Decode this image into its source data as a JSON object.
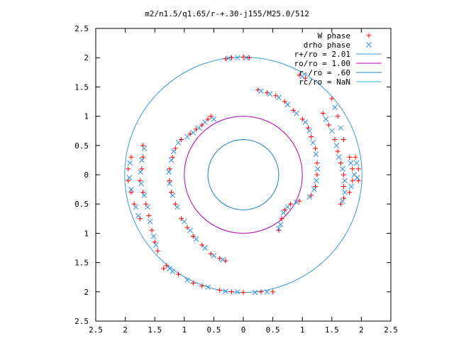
{
  "chart_data": {
    "type": "scatter",
    "title": "m2/n1.5/q1.65/r-+.30-j155/M25.0/512",
    "xlim": [
      -2.5,
      2.5
    ],
    "ylim": [
      -2.5,
      2.5
    ],
    "x_tick_labels": [
      "2.5",
      "2",
      "1.5",
      "1",
      "0.5",
      "0",
      "0.5",
      "1",
      "1.5",
      "2",
      "2.5"
    ],
    "y_tick_labels": [
      "2.5",
      "2",
      "1.5",
      "1",
      "0.5",
      "0",
      "0.5",
      "1",
      "1.5",
      "2",
      "2.5"
    ],
    "grid": false,
    "legend_position": "top-right",
    "legend": [
      {
        "label": "W phase",
        "marker": "plus",
        "color": "#ff0000"
      },
      {
        "label": "drho phase",
        "marker": "cross",
        "color": "#3090e0"
      },
      {
        "label": "r+/ro = 2.01",
        "marker": "line",
        "color": "#3a9ad8"
      },
      {
        "label": "ro/ro = 1.00",
        "marker": "line",
        "color": "#b000b0"
      },
      {
        "label": "r-/ro = .60",
        "marker": "line",
        "color": "#1a80c0"
      },
      {
        "label": "rc/ro = NaN",
        "marker": "line",
        "color": "#20c0e0"
      }
    ],
    "circles": [
      {
        "name": "r+/ro = 2.01",
        "r": 2.01,
        "color": "#3a9ad8"
      },
      {
        "name": "ro/ro = 1.00",
        "r": 1.0,
        "color": "#b000b0"
      },
      {
        "name": "r-/ro = .60",
        "r": 0.6,
        "color": "#1a80c0"
      }
    ],
    "series": [
      {
        "name": "W phase",
        "marker": "plus",
        "color": "#ff0000",
        "points": [
          [
            -0.55,
            1.0
          ],
          [
            -0.6,
            0.95
          ],
          [
            -0.7,
            0.85
          ],
          [
            -0.8,
            0.78
          ],
          [
            -0.9,
            0.7
          ],
          [
            -1.05,
            0.6
          ],
          [
            -1.15,
            0.45
          ],
          [
            -1.2,
            0.3
          ],
          [
            -1.25,
            0.1
          ],
          [
            -1.25,
            -0.1
          ],
          [
            -1.22,
            -0.3
          ],
          [
            -1.15,
            -0.5
          ],
          [
            -1.05,
            -0.75
          ],
          [
            -0.95,
            -0.9
          ],
          [
            -0.85,
            -1.05
          ],
          [
            -0.7,
            -1.2
          ],
          [
            -0.55,
            -1.35
          ],
          [
            -0.4,
            -1.43
          ],
          [
            -0.3,
            -1.47
          ],
          [
            -1.7,
            0.5
          ],
          [
            -1.7,
            0.3
          ],
          [
            -1.72,
            0.1
          ],
          [
            -1.75,
            -0.1
          ],
          [
            -1.7,
            -0.3
          ],
          [
            -1.65,
            -0.5
          ],
          [
            -1.6,
            -0.7
          ],
          [
            -1.55,
            -0.95
          ],
          [
            -1.5,
            -1.15
          ],
          [
            -1.45,
            -1.3
          ],
          [
            -1.35,
            -1.6
          ],
          [
            -1.1,
            -1.7
          ],
          [
            -0.85,
            -1.85
          ],
          [
            -1.95,
            -0.1
          ],
          [
            -1.95,
            0.1
          ],
          [
            -1.9,
            0.3
          ],
          [
            -1.9,
            -0.3
          ],
          [
            -1.85,
            -0.5
          ],
          [
            -1.75,
            -0.75
          ],
          [
            0.25,
            1.45
          ],
          [
            0.4,
            1.4
          ],
          [
            0.55,
            1.35
          ],
          [
            0.7,
            1.25
          ],
          [
            0.85,
            1.1
          ],
          [
            1.0,
            0.95
          ],
          [
            1.1,
            0.8
          ],
          [
            1.15,
            0.65
          ],
          [
            1.22,
            0.45
          ],
          [
            1.25,
            0.2
          ],
          [
            1.25,
            0.0
          ],
          [
            1.22,
            -0.2
          ],
          [
            1.15,
            -0.35
          ],
          [
            0.95,
            -0.45
          ],
          [
            0.8,
            -0.5
          ],
          [
            0.7,
            -0.6
          ],
          [
            0.65,
            -0.75
          ],
          [
            0.6,
            -0.95
          ],
          [
            1.35,
            1.05
          ],
          [
            1.45,
            0.85
          ],
          [
            1.55,
            0.6
          ],
          [
            1.6,
            0.4
          ],
          [
            1.65,
            0.2
          ],
          [
            1.7,
            0.0
          ],
          [
            1.7,
            -0.2
          ],
          [
            1.7,
            -0.4
          ],
          [
            1.65,
            -0.5
          ],
          [
            1.8,
            0.3
          ],
          [
            1.85,
            0.1
          ],
          [
            1.85,
            -0.1
          ],
          [
            1.8,
            -0.3
          ],
          [
            1.95,
            0.1
          ],
          [
            1.95,
            -0.1
          ],
          [
            1.9,
            0.3
          ],
          [
            1.7,
            0.6
          ],
          [
            1.6,
            1.0
          ],
          [
            1.5,
            1.3
          ],
          [
            1.05,
            1.65
          ],
          [
            0.95,
            1.7
          ],
          [
            0.0,
            2.01
          ],
          [
            0.1,
            2.0
          ],
          [
            -0.2,
            2.0
          ],
          [
            -0.3,
            1.98
          ],
          [
            0.5,
            -2.0
          ],
          [
            0.3,
            -2.0
          ],
          [
            0.0,
            -2.01
          ],
          [
            -0.2,
            -2.0
          ],
          [
            -0.4,
            -1.97
          ],
          [
            -1.3,
            -1.55
          ],
          [
            -0.7,
            -1.9
          ]
        ]
      },
      {
        "name": "drho phase",
        "marker": "cross",
        "color": "#3090e0",
        "points": [
          [
            -0.5,
            0.95
          ],
          [
            -0.65,
            0.9
          ],
          [
            -0.75,
            0.8
          ],
          [
            -0.85,
            0.72
          ],
          [
            -0.95,
            0.65
          ],
          [
            -1.1,
            0.55
          ],
          [
            -1.18,
            0.4
          ],
          [
            -1.22,
            0.25
          ],
          [
            -1.26,
            0.05
          ],
          [
            -1.25,
            -0.15
          ],
          [
            -1.2,
            -0.35
          ],
          [
            -1.12,
            -0.55
          ],
          [
            -1.0,
            -0.8
          ],
          [
            -0.9,
            -0.95
          ],
          [
            -0.8,
            -1.1
          ],
          [
            -0.65,
            -1.25
          ],
          [
            -0.5,
            -1.38
          ],
          [
            -0.35,
            -1.45
          ],
          [
            -1.68,
            0.45
          ],
          [
            -1.72,
            0.25
          ],
          [
            -1.74,
            0.05
          ],
          [
            -1.73,
            -0.15
          ],
          [
            -1.68,
            -0.35
          ],
          [
            -1.62,
            -0.55
          ],
          [
            -1.58,
            -0.8
          ],
          [
            -1.52,
            -1.05
          ],
          [
            -1.48,
            -1.2
          ],
          [
            -1.2,
            -1.65
          ],
          [
            -0.95,
            -1.8
          ],
          [
            -1.93,
            -0.05
          ],
          [
            -1.92,
            0.2
          ],
          [
            -1.9,
            -0.25
          ],
          [
            -1.82,
            -0.55
          ],
          [
            -1.78,
            -0.7
          ],
          [
            0.3,
            1.43
          ],
          [
            0.45,
            1.38
          ],
          [
            0.6,
            1.32
          ],
          [
            0.75,
            1.2
          ],
          [
            0.9,
            1.05
          ],
          [
            1.05,
            0.9
          ],
          [
            1.12,
            0.75
          ],
          [
            1.18,
            0.55
          ],
          [
            1.23,
            0.35
          ],
          [
            1.26,
            0.1
          ],
          [
            1.24,
            -0.1
          ],
          [
            1.2,
            -0.25
          ],
          [
            1.12,
            -0.38
          ],
          [
            0.9,
            -0.47
          ],
          [
            0.75,
            -0.55
          ],
          [
            0.68,
            -0.65
          ],
          [
            0.63,
            -0.85
          ],
          [
            0.6,
            -0.92
          ],
          [
            1.4,
            0.95
          ],
          [
            1.5,
            0.75
          ],
          [
            1.58,
            0.5
          ],
          [
            1.62,
            0.3
          ],
          [
            1.68,
            0.1
          ],
          [
            1.72,
            -0.1
          ],
          [
            1.72,
            -0.3
          ],
          [
            1.68,
            -0.45
          ],
          [
            1.82,
            0.2
          ],
          [
            1.88,
            0.0
          ],
          [
            1.83,
            -0.2
          ],
          [
            1.92,
            0.2
          ],
          [
            1.93,
            -0.05
          ],
          [
            1.65,
            0.8
          ],
          [
            1.55,
            1.15
          ],
          [
            1.0,
            1.68
          ],
          [
            0.05,
            2.0
          ],
          [
            -0.1,
            2.0
          ],
          [
            -0.25,
            1.99
          ],
          [
            0.4,
            -2.0
          ],
          [
            0.2,
            -2.01
          ],
          [
            -0.1,
            -2.0
          ],
          [
            -0.3,
            -1.99
          ],
          [
            -1.25,
            -1.6
          ],
          [
            -0.6,
            -1.92
          ]
        ]
      }
    ]
  }
}
